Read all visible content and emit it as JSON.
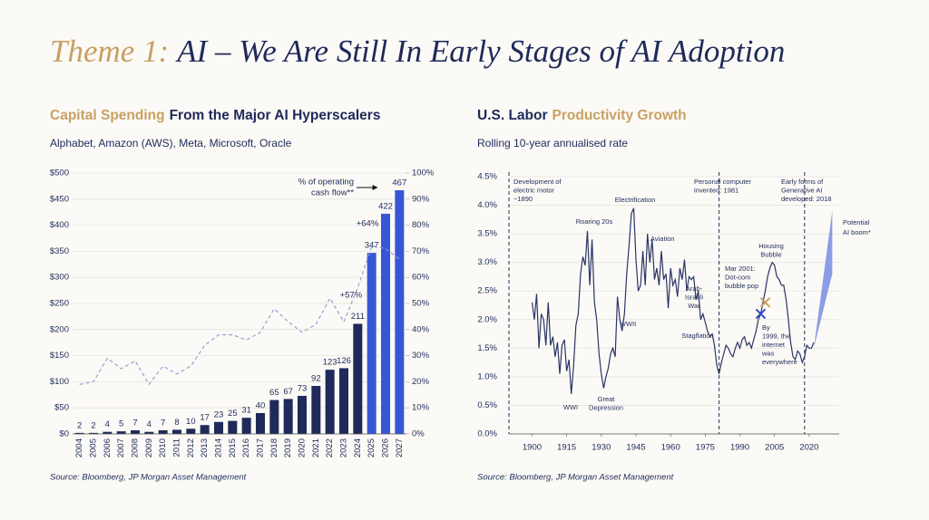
{
  "header": {
    "title": [
      {
        "text": "Theme 1:",
        "color": "#c9a063"
      },
      {
        "text": "AI – We Are Still In Early Stages of AI Adoption",
        "color": "#1f2a5a"
      }
    ]
  },
  "chart_data": [
    {
      "type": "bar",
      "title": [
        {
          "text": "Capital Spending",
          "color": "#c9a063"
        },
        {
          "text": "From the Major AI Hyperscalers",
          "color": "#1f2a5a"
        }
      ],
      "subtitle": "Alphabet, Amazon (AWS), Meta, Microsoft, Oracle",
      "categories": [
        "2004",
        "2005",
        "2006",
        "2007",
        "2008",
        "2009",
        "2010",
        "2011",
        "2012",
        "2013",
        "2014",
        "2015",
        "2016",
        "2017",
        "2018",
        "2019",
        "2020",
        "2021",
        "2022",
        "2023",
        "2024",
        "2025",
        "2026",
        "2027"
      ],
      "series": [
        {
          "values": [
            2,
            2,
            4,
            5,
            7,
            4,
            7,
            8,
            10,
            17,
            23,
            25,
            31,
            40,
            65,
            67,
            73,
            92,
            123,
            126,
            211,
            347,
            422,
            467
          ],
          "colors": [
            "#1f2a5a",
            "#1f2a5a",
            "#1f2a5a",
            "#1f2a5a",
            "#1f2a5a",
            "#1f2a5a",
            "#1f2a5a",
            "#1f2a5a",
            "#1f2a5a",
            "#1f2a5a",
            "#1f2a5a",
            "#1f2a5a",
            "#1f2a5a",
            "#1f2a5a",
            "#1f2a5a",
            "#1f2a5a",
            "#1f2a5a",
            "#1f2a5a",
            "#1f2a5a",
            "#1f2a5a",
            "#1f2a5a",
            "#3756d6",
            "#3756d6",
            "#3756d6"
          ]
        },
        {
          "values": [
            19,
            20,
            29,
            25,
            28,
            19,
            26,
            23,
            26,
            34,
            38,
            38,
            36,
            39,
            48,
            43,
            39,
            42,
            52,
            43,
            56,
            72,
            71,
            67
          ],
          "axis": "y2",
          "color": "#8c9ad6",
          "dashed": true
        }
      ],
      "ylim": [
        0,
        500
      ],
      "yticks": [
        {
          "value": 0,
          "label": "$0"
        },
        {
          "value": 50,
          "label": "$50"
        },
        {
          "value": 100,
          "label": "$100"
        },
        {
          "value": 150,
          "label": "$150"
        },
        {
          "value": 200,
          "label": "$200"
        },
        {
          "value": 250,
          "label": "$250"
        },
        {
          "value": 300,
          "label": "$300"
        },
        {
          "value": 350,
          "label": "$350"
        },
        {
          "value": 400,
          "label": "$400"
        },
        {
          "value": 450,
          "label": "$450"
        },
        {
          "value": 500,
          "label": "$500"
        }
      ],
      "y2lim": [
        0,
        100
      ],
      "y2ticks": [
        {
          "value": 0,
          "label": "0%"
        },
        {
          "value": 10,
          "label": "10%"
        },
        {
          "value": 20,
          "label": "20%"
        },
        {
          "value": 30,
          "label": "30%"
        },
        {
          "value": 40,
          "label": "40%"
        },
        {
          "value": 50,
          "label": "50%"
        },
        {
          "value": 60,
          "label": "60%"
        },
        {
          "value": 70,
          "label": "70%"
        },
        {
          "value": 80,
          "label": "80%"
        },
        {
          "value": 90,
          "label": "90%"
        },
        {
          "value": 100,
          "label": "100%"
        }
      ],
      "grid": true,
      "annotations": [
        {
          "lines": [
            "% of operating",
            "cash flow**"
          ],
          "color": "#1f2a5a"
        },
        {
          "lines": [
            "+64%"
          ],
          "color": "#c9a063"
        },
        {
          "lines": [
            "+57%"
          ],
          "color": "#c9a063"
        }
      ],
      "source": "Source: Bloomberg, JP Morgan Asset Management"
    },
    {
      "type": "line",
      "title": [
        {
          "text": "U.S. Labor",
          "color": "#1f2a5a"
        },
        {
          "text": "Productivity Growth",
          "color": "#c9a063"
        }
      ],
      "subtitle": "Rolling 10-year annualised rate",
      "x": [
        1900,
        1901,
        1902,
        1903,
        1904,
        1905,
        1906,
        1907,
        1908,
        1909,
        1910,
        1911,
        1912,
        1913,
        1914,
        1915,
        1916,
        1917,
        1918,
        1919,
        1920,
        1921,
        1922,
        1923,
        1924,
        1925,
        1926,
        1927,
        1928,
        1929,
        1930,
        1931,
        1932,
        1933,
        1934,
        1935,
        1936,
        1937,
        1938,
        1939,
        1940,
        1941,
        1942,
        1943,
        1944,
        1945,
        1946,
        1947,
        1948,
        1949,
        1950,
        1951,
        1952,
        1953,
        1954,
        1955,
        1956,
        1957,
        1958,
        1959,
        1960,
        1961,
        1962,
        1963,
        1964,
        1965,
        1966,
        1967,
        1968,
        1969,
        1970,
        1971,
        1972,
        1973,
        1974,
        1975,
        1976,
        1977,
        1978,
        1979,
        1980,
        1981,
        1982,
        1983,
        1984,
        1985,
        1986,
        1987,
        1988,
        1989,
        1990,
        1991,
        1992,
        1993,
        1994,
        1995,
        1996,
        1997,
        1998,
        1999,
        2000,
        2001,
        2002,
        2003,
        2004,
        2005,
        2006,
        2007,
        2008,
        2009,
        2010,
        2011,
        2012,
        2013,
        2014,
        2015,
        2016,
        2017,
        2018,
        2019,
        2020,
        2021,
        2022
      ],
      "series": [
        {
          "color": "#2a3566",
          "values": [
            2.3,
            2.0,
            2.45,
            1.5,
            2.1,
            2.0,
            1.55,
            2.3,
            1.55,
            1.7,
            1.35,
            1.6,
            1.05,
            1.55,
            1.65,
            1.1,
            1.3,
            0.7,
            1.2,
            1.9,
            2.1,
            2.8,
            3.1,
            2.95,
            3.55,
            2.6,
            3.4,
            2.3,
            2.0,
            1.4,
            1.05,
            0.8,
            1.0,
            1.15,
            1.4,
            1.5,
            1.35,
            2.4,
            2.0,
            1.8,
            2.1,
            2.8,
            3.3,
            3.85,
            3.95,
            3.05,
            2.5,
            2.6,
            3.2,
            2.6,
            3.5,
            3.0,
            3.4,
            2.7,
            2.9,
            2.6,
            3.2,
            2.7,
            2.8,
            2.2,
            2.9,
            2.6,
            2.7,
            2.4,
            2.9,
            2.7,
            3.05,
            2.5,
            2.75,
            2.7,
            2.75,
            2.35,
            2.5,
            2.0,
            2.1,
            1.95,
            1.8,
            1.7,
            1.75,
            1.55,
            1.2,
            1.05,
            1.25,
            1.4,
            1.55,
            1.5,
            1.4,
            1.35,
            1.5,
            1.6,
            1.5,
            1.65,
            1.7,
            1.55,
            1.6,
            1.5,
            1.65,
            1.8,
            2.0,
            2.1,
            2.3,
            2.5,
            2.75,
            2.9,
            3.0,
            2.95,
            2.75,
            2.7,
            2.6,
            2.6,
            2.35,
            2.0,
            1.6,
            1.35,
            1.3,
            1.45,
            1.4,
            1.25,
            1.35,
            1.55,
            1.5,
            1.5,
            1.6
          ]
        }
      ],
      "projection": {
        "lines": [
          "Potential",
          "AI boom*"
        ],
        "x": [
          2022,
          2030
        ],
        "low": [
          1.5,
          2.8
        ],
        "high": [
          1.5,
          3.9
        ],
        "color": "#7f92e6"
      },
      "xlim": [
        1890,
        2033
      ],
      "xticks": [
        1900,
        1915,
        1930,
        1945,
        1960,
        1975,
        1990,
        2005,
        2020
      ],
      "ylim": [
        0,
        4.5
      ],
      "yticks": [
        {
          "value": 0,
          "label": "0.0%"
        },
        {
          "value": 0.5,
          "label": "0.5%"
        },
        {
          "value": 1,
          "label": "1.0%"
        },
        {
          "value": 1.5,
          "label": "1.5%"
        },
        {
          "value": 2,
          "label": "2.0%"
        },
        {
          "value": 2.5,
          "label": "2.5%"
        },
        {
          "value": 3,
          "label": "3.0%"
        },
        {
          "value": 3.5,
          "label": "3.5%"
        },
        {
          "value": 4,
          "label": "4.0%"
        },
        {
          "value": 4.5,
          "label": "4.5%"
        }
      ],
      "grid": true,
      "vlines": [
        {
          "x": 1890,
          "lines": [
            "Development of",
            "electric motor",
            "~1890"
          ]
        },
        {
          "x": 1981,
          "lines": [
            "Personal computer",
            "invented: 1981"
          ]
        },
        {
          "x": 2018,
          "lines": [
            "Early forms of",
            "Generative AI",
            "developed: 2018"
          ]
        }
      ],
      "events": [
        {
          "lines": [
            "Electrification"
          ]
        },
        {
          "lines": [
            "Roaring 20s"
          ]
        },
        {
          "lines": [
            "Aviation"
          ]
        },
        {
          "lines": [
            "WWI"
          ]
        },
        {
          "lines": [
            "WWII"
          ]
        },
        {
          "lines": [
            "Great",
            "Depression"
          ]
        },
        {
          "lines": [
            "Arab-",
            "Israeli",
            "War"
          ]
        },
        {
          "lines": [
            "Stagflation"
          ]
        },
        {
          "lines": [
            "Housing",
            "Bubble"
          ]
        }
      ],
      "markers": [
        {
          "x": 2001,
          "y": 2.3,
          "color": "#c9a063",
          "lines": [
            "Mar 2001:",
            "Dot-com",
            "bubble pop"
          ]
        },
        {
          "x": 1999,
          "y": 2.1,
          "color": "#2b47c9",
          "lines": [
            "By",
            "1999, the",
            "internet",
            "was",
            "everywhere"
          ]
        }
      ],
      "source": "Source: Bloomberg, JP Morgan Asset Management"
    }
  ]
}
